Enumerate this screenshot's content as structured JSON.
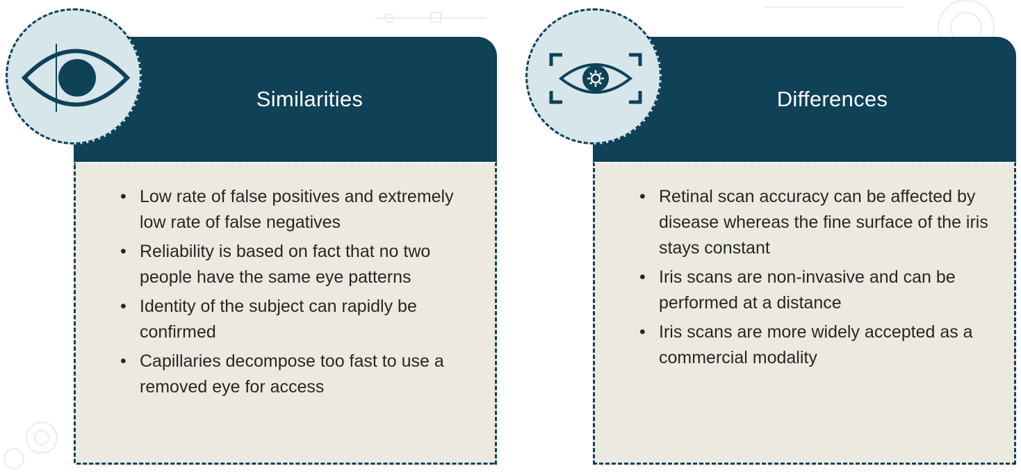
{
  "colors": {
    "header": "#0f4157",
    "body": "#eceae0",
    "badge": "#d6e6eb",
    "text": "#262626"
  },
  "similarities": {
    "title": "Similarities",
    "icon": "eye-icon",
    "points": [
      "Low rate of false positives and extremely low rate of false negatives",
      "Reliability is based on fact that no two people have the same eye patterns",
      "Identity of the subject can rapidly be confirmed",
      "Capillaries decompose too fast to use a removed eye for access"
    ]
  },
  "differences": {
    "title": "Differences",
    "icon": "eye-scan-icon",
    "points": [
      "Retinal scan accuracy can be affected by disease whereas the fine surface of the iris stays constant",
      "Iris scans are non-invasive and can be performed at a distance",
      "Iris scans are more widely accepted as a commercial modality"
    ]
  }
}
